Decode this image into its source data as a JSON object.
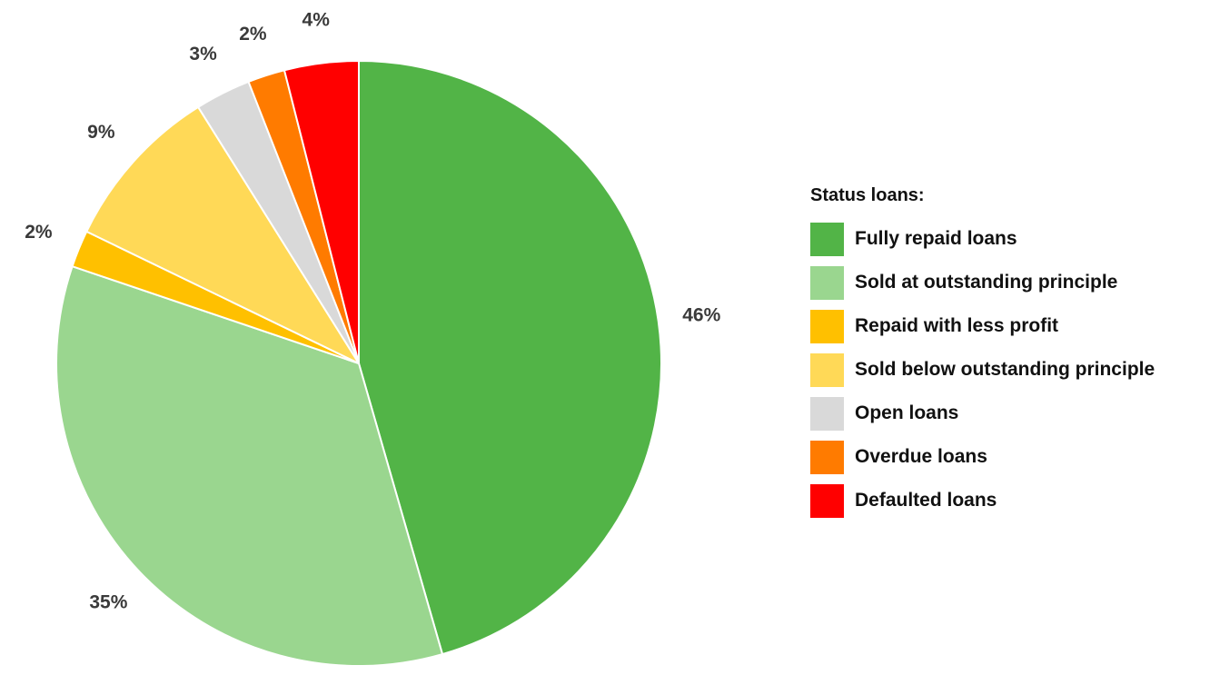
{
  "chart_data": {
    "type": "pie",
    "start_angle_deg": 0,
    "direction": "clockwise",
    "legend": {
      "title": "Status loans:",
      "placement": "right"
    },
    "slices": [
      {
        "label": "Fully repaid loans",
        "value": 46,
        "display": "46%",
        "color": "#52b447"
      },
      {
        "label": "Sold at outstanding principle",
        "value": 35,
        "display": "35%",
        "color": "#9ad68f"
      },
      {
        "label": "Repaid with less profit",
        "value": 2,
        "display": "2%",
        "color": "#ffc000"
      },
      {
        "label": "Sold below outstanding principle",
        "value": 9,
        "display": "9%",
        "color": "#ffd957"
      },
      {
        "label": "Open loans",
        "value": 3,
        "display": "3%",
        "color": "#d9d9d9"
      },
      {
        "label": "Overdue loans",
        "value": 2,
        "display": "2%",
        "color": "#ff7b00"
      },
      {
        "label": "Defaulted loans",
        "value": 4,
        "display": "4%",
        "color": "#ff0000"
      }
    ]
  }
}
